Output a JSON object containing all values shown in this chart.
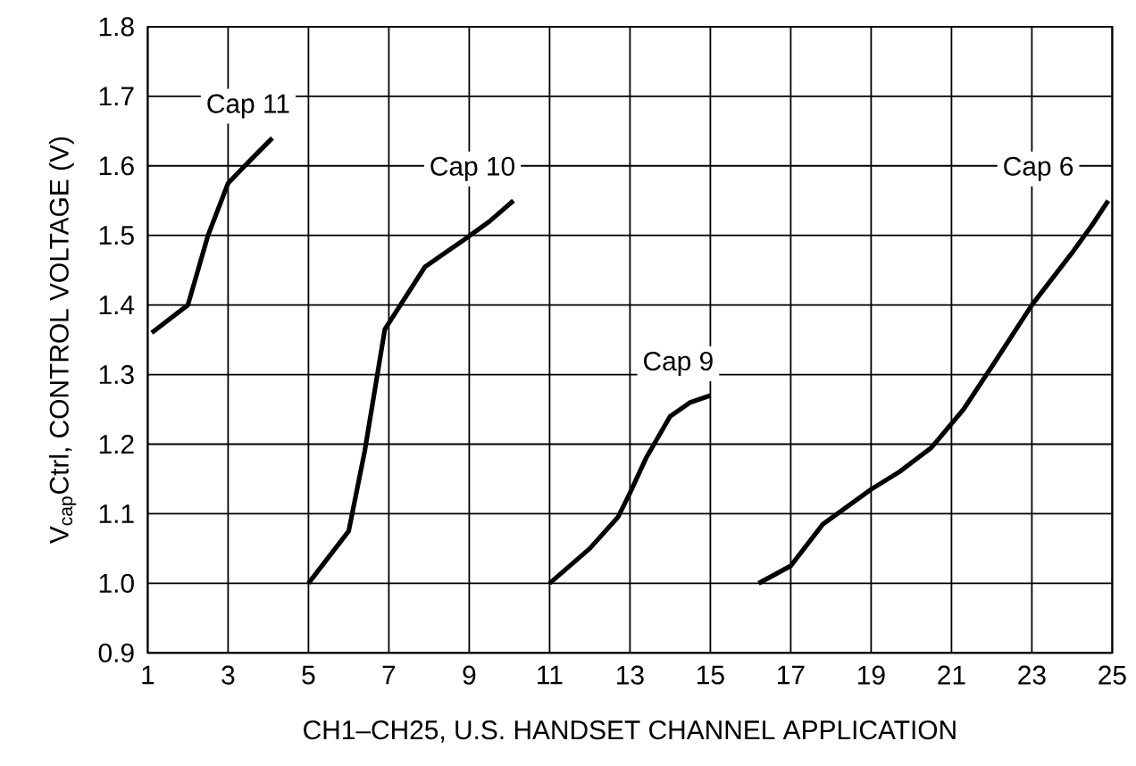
{
  "chart_data": {
    "type": "line",
    "xlabel": "CH1–CH25, U.S. HANDSET CHANNEL APPLICATION",
    "ylabel": "V$_{cap}$Ctrl, CONTROL VOLTAGE (V)",
    "xlim": [
      1,
      25
    ],
    "ylim": [
      0.9,
      1.8
    ],
    "xticks": [
      1,
      3,
      5,
      7,
      9,
      11,
      13,
      15,
      17,
      19,
      21,
      23,
      25
    ],
    "yticks": [
      {
        "value": 0.9,
        "label": "0.9"
      },
      {
        "value": 1.0,
        "label": "1.0"
      },
      {
        "value": 1.1,
        "label": "1.1"
      },
      {
        "value": 1.2,
        "label": "1.2"
      },
      {
        "value": 1.3,
        "label": "1.3"
      },
      {
        "value": 1.4,
        "label": "1.4"
      },
      {
        "value": 1.5,
        "label": "1.5"
      },
      {
        "value": 1.6,
        "label": "1.6"
      },
      {
        "value": 1.7,
        "label": "1.7"
      },
      {
        "value": 1.8,
        "label": "1.8"
      }
    ],
    "grid": true,
    "marker": "none",
    "line_style": "solid",
    "series": [
      {
        "name": "Cap 11",
        "color": "#000000",
        "x": [
          1.1,
          2.0,
          2.5,
          3.0,
          3.5,
          4.1
        ],
        "values": [
          1.36,
          1.4,
          1.5,
          1.575,
          1.605,
          1.64
        ]
      },
      {
        "name": "Cap 10",
        "color": "#000000",
        "x": [
          5.0,
          6.0,
          6.4,
          6.9,
          7.9,
          8.9,
          9.5,
          10.1
        ],
        "values": [
          1.0,
          1.075,
          1.19,
          1.365,
          1.455,
          1.495,
          1.52,
          1.55
        ]
      },
      {
        "name": "Cap 9",
        "color": "#000000",
        "x": [
          11.0,
          12.0,
          12.7,
          13.0,
          13.4,
          14.0,
          14.5,
          15.0
        ],
        "values": [
          1.0,
          1.05,
          1.095,
          1.13,
          1.18,
          1.24,
          1.26,
          1.27
        ]
      },
      {
        "name": "Cap 6",
        "color": "#000000",
        "x": [
          16.2,
          17.0,
          17.8,
          19.0,
          19.7,
          20.5,
          21.3,
          22.1,
          23.0,
          24.0,
          24.5,
          24.9
        ],
        "values": [
          1.0,
          1.025,
          1.085,
          1.135,
          1.16,
          1.195,
          1.25,
          1.32,
          1.4,
          1.475,
          1.515,
          1.55
        ]
      }
    ]
  }
}
